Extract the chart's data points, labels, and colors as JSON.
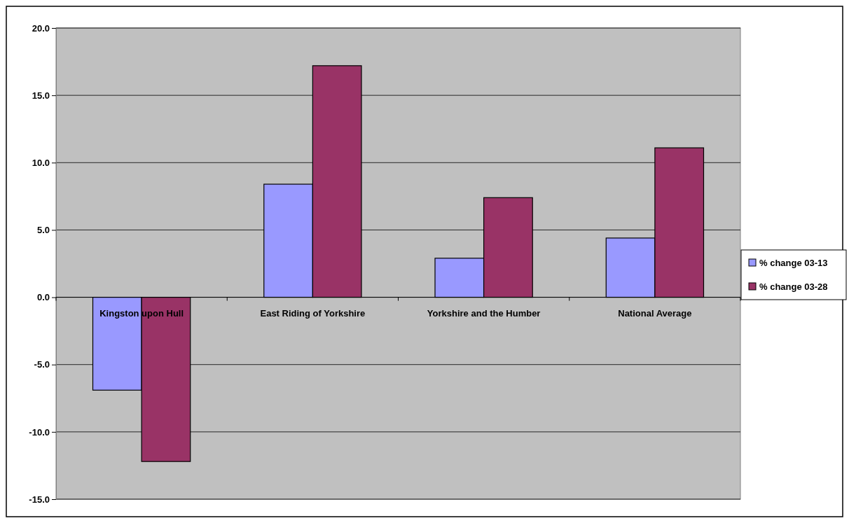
{
  "chart_data": {
    "type": "bar",
    "categories": [
      "Kingston upon Hull",
      "East Riding of Yorkshire",
      "Yorkshire and the Humber",
      "National Average"
    ],
    "series": [
      {
        "name": "% change 03-13",
        "color": "#9999ff",
        "values": [
          -6.9,
          8.4,
          2.9,
          4.4
        ]
      },
      {
        "name": "% change 03-28",
        "color": "#993366",
        "values": [
          -12.2,
          17.2,
          7.4,
          11.1
        ]
      }
    ],
    "ylim": [
      -15,
      20
    ],
    "yticks": [
      {
        "value": -15,
        "label": "-15.0"
      },
      {
        "value": -10,
        "label": "-10.0"
      },
      {
        "value": -5,
        "label": "-5.0"
      },
      {
        "value": 0,
        "label": "0.0"
      },
      {
        "value": 5,
        "label": "5.0"
      },
      {
        "value": 10,
        "label": "10.0"
      },
      {
        "value": 15,
        "label": "15.0"
      },
      {
        "value": 20,
        "label": "20.0"
      }
    ],
    "grid": "y",
    "legend": "right"
  }
}
